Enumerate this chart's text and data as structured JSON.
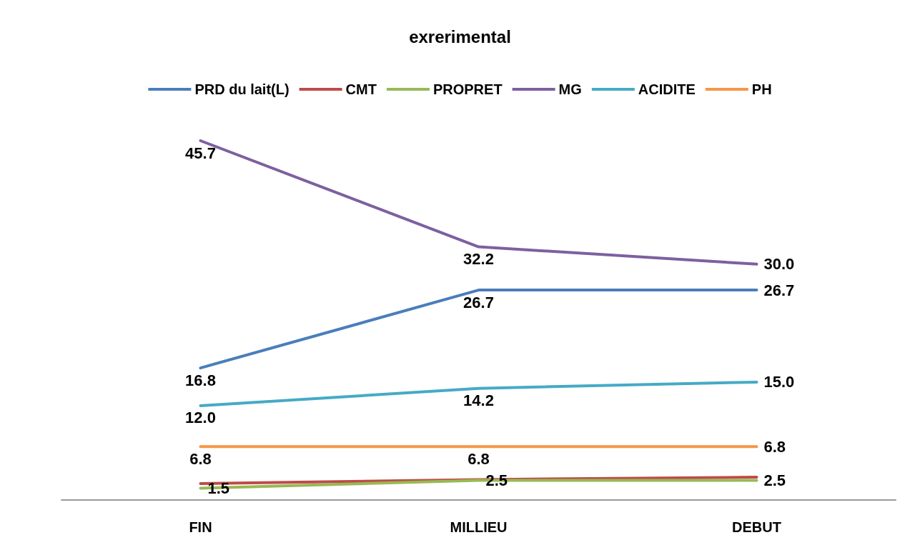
{
  "chart_data": {
    "type": "line",
    "title": "exrerimental",
    "categories": [
      "FIN",
      "MILLIEU",
      "DEBUT"
    ],
    "series": [
      {
        "name": "PRD du lait(L)",
        "color": "#4a7ebb",
        "values": [
          16.8,
          26.7,
          26.7
        ],
        "value_labels": [
          "16.8",
          "26.7",
          "26.7"
        ]
      },
      {
        "name": "CMT",
        "color": "#be4b48",
        "values": [
          2.1,
          2.6,
          2.9
        ],
        "value_labels": [
          null,
          null,
          null
        ]
      },
      {
        "name": "PROPRET",
        "color": "#98b954",
        "values": [
          1.5,
          2.5,
          2.5
        ],
        "value_labels": [
          "1.5",
          "2.5",
          "2.5"
        ]
      },
      {
        "name": "MG",
        "color": "#7d60a0",
        "values": [
          45.7,
          32.2,
          30.0
        ],
        "value_labels": [
          "45.7",
          "32.2",
          "30.0"
        ]
      },
      {
        "name": "ACIDITE",
        "color": "#46aac5",
        "values": [
          12.0,
          14.2,
          15.0
        ],
        "value_labels": [
          "12.0",
          "14.2",
          "15.0"
        ]
      },
      {
        "name": "PH",
        "color": "#f79646",
        "values": [
          6.8,
          6.8,
          6.8
        ],
        "value_labels": [
          "6.8",
          "6.8",
          "6.8"
        ]
      }
    ],
    "grid": false,
    "legend": "top",
    "marker": "none",
    "line_style": "solid"
  }
}
